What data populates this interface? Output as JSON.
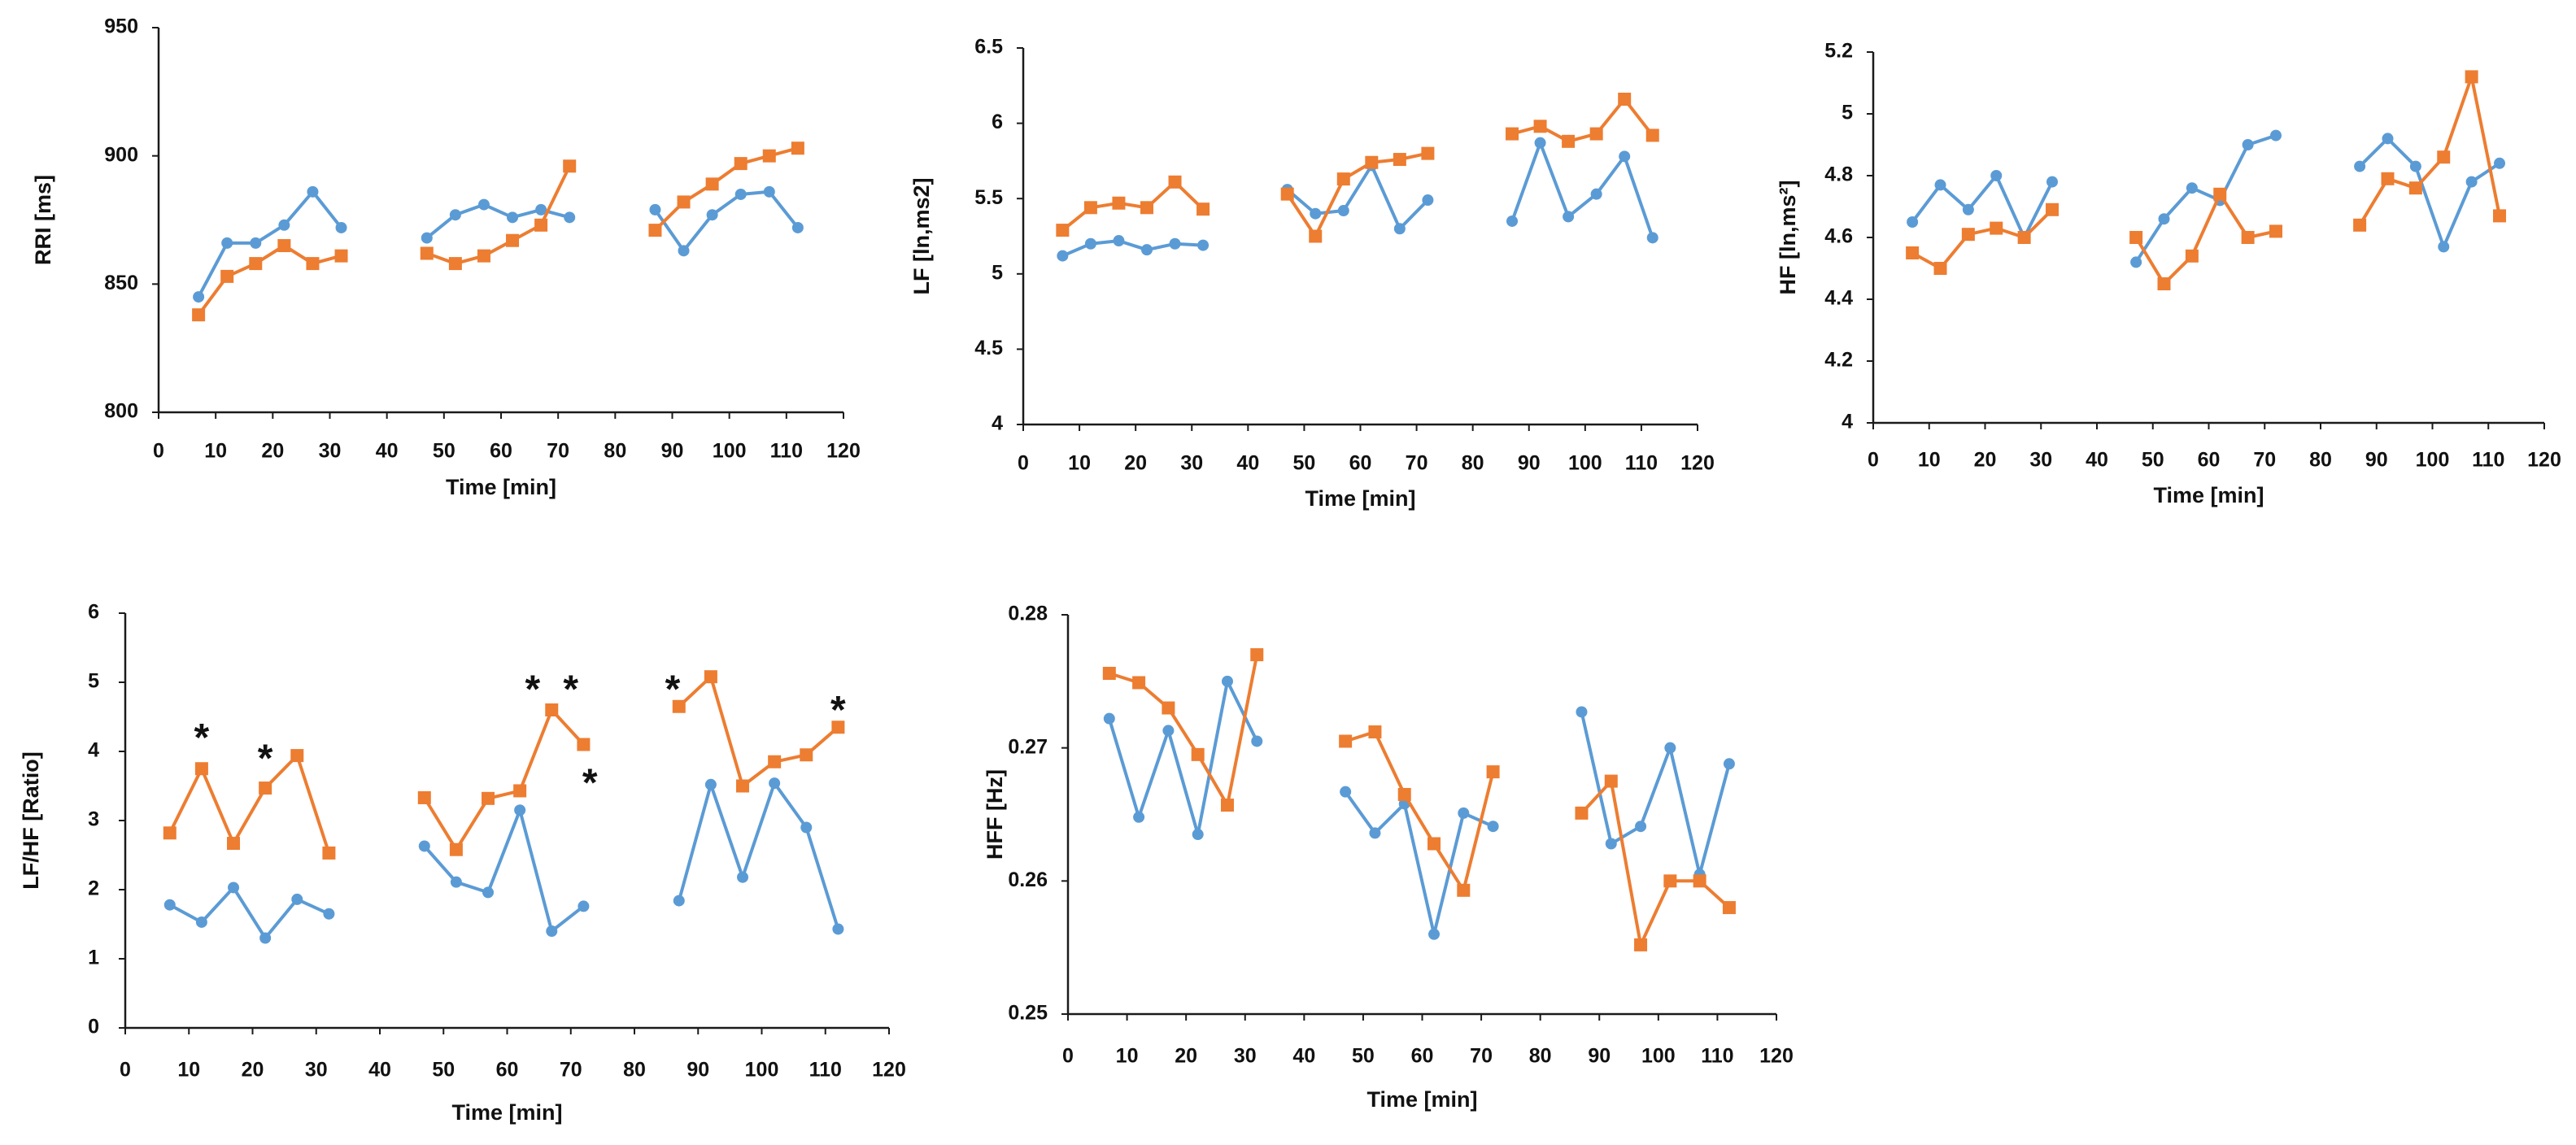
{
  "colors": {
    "blue": "#5B9BD5",
    "orange": "#ED7D31",
    "axis": "#1a1a1a"
  },
  "chart_data": [
    {
      "type": "line",
      "id": "rri",
      "xlabel": "Time [min]",
      "ylabel": "RRI [ms]",
      "xlim": [
        0,
        120
      ],
      "ylim": [
        800,
        950
      ],
      "x_ticks": [
        "0",
        "10",
        "20",
        "30",
        "40",
        "50",
        "60",
        "70",
        "80",
        "90",
        "100",
        "110",
        "120"
      ],
      "y_ticks": [
        "800",
        "850",
        "900",
        "950"
      ],
      "grid": false,
      "series": [
        {
          "color": "#5B9BD5",
          "marker": "circle",
          "segments": [
            {
              "x": [
                7,
                12,
                17,
                22,
                27,
                32
              ],
              "y": [
                845,
                866,
                866,
                873,
                886,
                872
              ]
            },
            {
              "x": [
                47,
                52,
                57,
                62,
                67,
                72
              ],
              "y": [
                868,
                877,
                881,
                876,
                879,
                876
              ]
            },
            {
              "x": [
                87,
                92,
                97,
                102,
                107,
                112
              ],
              "y": [
                879,
                863,
                877,
                885,
                886,
                872
              ]
            }
          ]
        },
        {
          "color": "#ED7D31",
          "marker": "square",
          "segments": [
            {
              "x": [
                7,
                12,
                17,
                22,
                27,
                32
              ],
              "y": [
                838,
                853,
                858,
                865,
                858,
                861
              ]
            },
            {
              "x": [
                47,
                52,
                57,
                62,
                67,
                72
              ],
              "y": [
                862,
                858,
                861,
                867,
                873,
                896
              ]
            },
            {
              "x": [
                87,
                92,
                97,
                102,
                107,
                112
              ],
              "y": [
                871,
                882,
                889,
                897,
                900,
                903
              ]
            }
          ]
        }
      ],
      "annotations": []
    },
    {
      "type": "line",
      "id": "lf",
      "xlabel": "Time [min]",
      "ylabel": "LF [ln,ms2]",
      "xlim": [
        0,
        120
      ],
      "ylim": [
        4,
        6.5
      ],
      "x_ticks": [
        "0",
        "10",
        "20",
        "30",
        "40",
        "50",
        "60",
        "70",
        "80",
        "90",
        "100",
        "110",
        "120"
      ],
      "y_ticks": [
        "4",
        "4.5",
        "5",
        "5.5",
        "6",
        "6.5"
      ],
      "grid": false,
      "series": [
        {
          "color": "#5B9BD5",
          "marker": "circle",
          "segments": [
            {
              "x": [
                7,
                12,
                17,
                22,
                27,
                32
              ],
              "y": [
                5.12,
                5.2,
                5.22,
                5.16,
                5.2,
                5.19
              ]
            },
            {
              "x": [
                47,
                52,
                57,
                62,
                67,
                72
              ],
              "y": [
                5.56,
                5.4,
                5.42,
                5.72,
                5.3,
                5.49
              ]
            },
            {
              "x": [
                87,
                92,
                97,
                102,
                107,
                112
              ],
              "y": [
                5.35,
                5.87,
                5.38,
                5.53,
                5.78,
                5.24
              ]
            }
          ]
        },
        {
          "color": "#ED7D31",
          "marker": "square",
          "segments": [
            {
              "x": [
                7,
                12,
                17,
                22,
                27,
                32
              ],
              "y": [
                5.29,
                5.44,
                5.47,
                5.44,
                5.61,
                5.43
              ]
            },
            {
              "x": [
                47,
                52,
                57,
                62,
                67,
                72
              ],
              "y": [
                5.53,
                5.25,
                5.63,
                5.74,
                5.76,
                5.8
              ]
            },
            {
              "x": [
                87,
                92,
                97,
                102,
                107,
                112
              ],
              "y": [
                5.93,
                5.98,
                5.88,
                5.93,
                6.16,
                5.92
              ]
            }
          ]
        }
      ],
      "annotations": []
    },
    {
      "type": "line",
      "id": "hf",
      "xlabel": "Time [min]",
      "ylabel": "HF [ln,ms²]",
      "xlim": [
        0,
        120
      ],
      "ylim": [
        4,
        5.2
      ],
      "x_ticks": [
        "0",
        "10",
        "20",
        "30",
        "40",
        "50",
        "60",
        "70",
        "80",
        "90",
        "100",
        "110",
        "120"
      ],
      "y_ticks": [
        "4",
        "4.2",
        "4.4",
        "4.6",
        "4.8",
        "5",
        "5.2"
      ],
      "grid": false,
      "series": [
        {
          "color": "#5B9BD5",
          "marker": "circle",
          "segments": [
            {
              "x": [
                7,
                12,
                17,
                22,
                27,
                32
              ],
              "y": [
                4.65,
                4.77,
                4.69,
                4.8,
                4.6,
                4.78
              ]
            },
            {
              "x": [
                47,
                52,
                57,
                62,
                67,
                72
              ],
              "y": [
                4.52,
                4.66,
                4.76,
                4.72,
                4.9,
                4.93
              ]
            },
            {
              "x": [
                87,
                92,
                97,
                102,
                107,
                112
              ],
              "y": [
                4.83,
                4.92,
                4.83,
                4.57,
                4.78,
                4.84
              ]
            }
          ]
        },
        {
          "color": "#ED7D31",
          "marker": "square",
          "segments": [
            {
              "x": [
                7,
                12,
                17,
                22,
                27,
                32
              ],
              "y": [
                4.55,
                4.5,
                4.61,
                4.63,
                4.6,
                4.69
              ]
            },
            {
              "x": [
                47,
                52,
                57,
                62,
                67,
                72
              ],
              "y": [
                4.6,
                4.45,
                4.54,
                4.74,
                4.6,
                4.62
              ]
            },
            {
              "x": [
                87,
                92,
                97,
                102,
                107,
                112
              ],
              "y": [
                4.64,
                4.79,
                4.76,
                4.86,
                5.12,
                4.67
              ]
            }
          ]
        }
      ],
      "annotations": []
    },
    {
      "type": "line",
      "id": "lfhf",
      "xlabel": "Time [min]",
      "ylabel": "LF/HF [Ratio]",
      "xlim": [
        0,
        120
      ],
      "ylim": [
        0,
        6
      ],
      "x_ticks": [
        "0",
        "10",
        "20",
        "30",
        "40",
        "50",
        "60",
        "70",
        "80",
        "90",
        "100",
        "110",
        "120"
      ],
      "y_ticks": [
        "0",
        "1",
        "2",
        "3",
        "4",
        "5",
        "6"
      ],
      "grid": false,
      "series": [
        {
          "color": "#5B9BD5",
          "marker": "circle",
          "segments": [
            {
              "x": [
                7,
                12,
                17,
                22,
                27,
                32
              ],
              "y": [
                1.78,
                1.53,
                2.03,
                1.3,
                1.86,
                1.65
              ]
            },
            {
              "x": [
                47,
                52,
                57,
                62,
                67,
                72
              ],
              "y": [
                2.63,
                2.11,
                1.96,
                3.15,
                1.4,
                1.76
              ]
            },
            {
              "x": [
                87,
                92,
                97,
                102,
                107,
                112
              ],
              "y": [
                1.84,
                3.52,
                2.18,
                3.54,
                2.9,
                1.43
              ]
            }
          ]
        },
        {
          "color": "#ED7D31",
          "marker": "square",
          "segments": [
            {
              "x": [
                7,
                12,
                17,
                22,
                27,
                32
              ],
              "y": [
                2.82,
                3.75,
                2.67,
                3.47,
                3.94,
                2.53
              ]
            },
            {
              "x": [
                47,
                52,
                57,
                62,
                67,
                72
              ],
              "y": [
                3.33,
                2.58,
                3.32,
                3.43,
                4.6,
                4.1
              ]
            },
            {
              "x": [
                87,
                92,
                97,
                102,
                107,
                112
              ],
              "y": [
                4.65,
                5.08,
                3.5,
                3.85,
                3.95,
                4.35
              ]
            }
          ]
        }
      ],
      "annotations": [
        {
          "text": "*",
          "x": 12,
          "y": 4.2
        },
        {
          "text": "*",
          "x": 22,
          "y": 3.9
        },
        {
          "text": "*",
          "x": 64,
          "y": 4.9
        },
        {
          "text": "*",
          "x": 70,
          "y": 4.9
        },
        {
          "text": "*",
          "x": 73,
          "y": 3.55
        },
        {
          "text": "*",
          "x": 86,
          "y": 4.9
        },
        {
          "text": "*",
          "x": 112,
          "y": 4.6
        }
      ]
    },
    {
      "type": "line",
      "id": "hff",
      "xlabel": "Time [min]",
      "ylabel": "HFF [Hz]",
      "xlim": [
        0,
        120
      ],
      "ylim": [
        0.25,
        0.28
      ],
      "x_ticks": [
        "0",
        "10",
        "20",
        "30",
        "40",
        "50",
        "60",
        "70",
        "80",
        "90",
        "100",
        "110",
        "120"
      ],
      "y_ticks": [
        "0.25",
        "0.26",
        "0.27",
        "0.28"
      ],
      "grid": false,
      "series": [
        {
          "color": "#5B9BD5",
          "marker": "circle",
          "segments": [
            {
              "x": [
                7,
                12,
                17,
                22,
                27,
                32
              ],
              "y": [
                0.2722,
                0.2648,
                0.2713,
                0.2635,
                0.275,
                0.2705
              ]
            },
            {
              "x": [
                47,
                52,
                57,
                62,
                67,
                72
              ],
              "y": [
                0.2667,
                0.2636,
                0.2658,
                0.256,
                0.2651,
                0.2641
              ]
            },
            {
              "x": [
                87,
                92,
                97,
                102,
                107,
                112
              ],
              "y": [
                0.2727,
                0.2628,
                0.2641,
                0.27,
                0.2605,
                0.2688
              ]
            }
          ]
        },
        {
          "color": "#ED7D31",
          "marker": "square",
          "segments": [
            {
              "x": [
                7,
                12,
                17,
                22,
                27,
                32
              ],
              "y": [
                0.2756,
                0.2749,
                0.273,
                0.2695,
                0.2657,
                0.277
              ]
            },
            {
              "x": [
                47,
                52,
                57,
                62,
                67,
                72
              ],
              "y": [
                0.2705,
                0.2712,
                0.2665,
                0.2628,
                0.2593,
                0.2682
              ]
            },
            {
              "x": [
                87,
                92,
                97,
                102,
                107,
                112
              ],
              "y": [
                0.2651,
                0.2675,
                0.2552,
                0.26,
                0.26,
                0.258
              ]
            }
          ]
        }
      ],
      "annotations": []
    }
  ]
}
